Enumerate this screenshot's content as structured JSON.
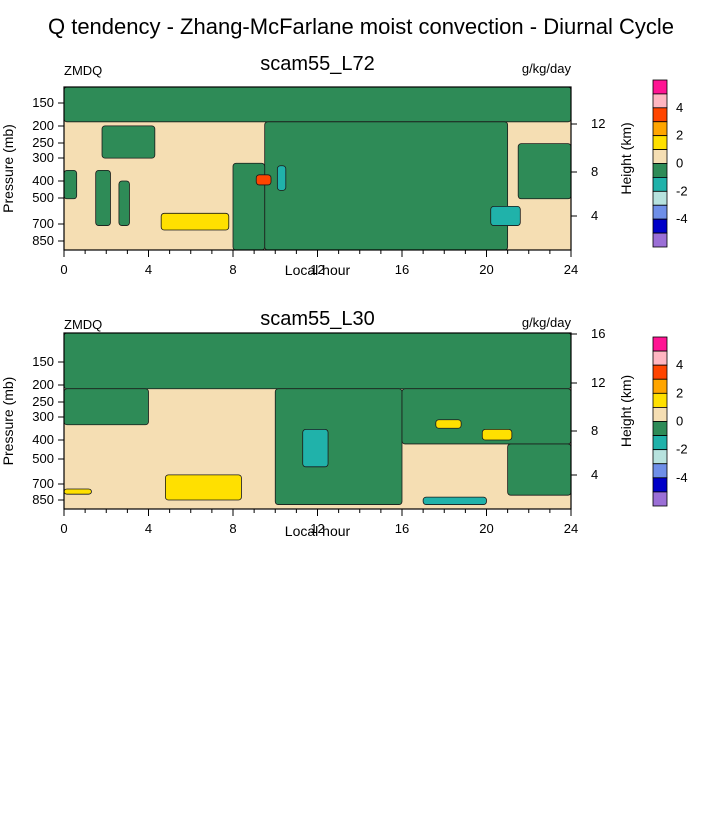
{
  "figure_title": "Q tendency - Zhang-McFarlane moist convection - Diurnal Cycle",
  "colors": {
    "purple": "#9b6fd6",
    "dark_blue": "#0000c8",
    "blue": "#6f8fe8",
    "light_blue": "#add8e6",
    "light_teal": "#b7e2de",
    "teal": "#20b2aa",
    "green": "#2e8b57",
    "beige": "#f5deb3",
    "yellow": "#ffe000",
    "orange": "#ffa500",
    "red_orange": "#ff4500",
    "pink": "#ffb6c1",
    "magenta": "#ff1493"
  },
  "chart_data": [
    {
      "type": "heatmap",
      "panel": "L72",
      "title": "scam55_L72",
      "left_label": "ZMDQ",
      "right_label": "g/kg/day",
      "xlabel": "Local hour",
      "ylabel": "Pressure (mb)",
      "y2label": "Height (km)",
      "xlim": [
        0,
        24
      ],
      "xticks": [
        "0",
        "4",
        "8",
        "12",
        "16",
        "20",
        "24"
      ],
      "yticks": [
        "150",
        "200",
        "250",
        "300",
        "400",
        "500",
        "700",
        "850"
      ],
      "y2ticks": [
        "4",
        "8",
        "12"
      ],
      "colorbar": {
        "labels": [
          "4",
          "2",
          "0",
          "-2",
          "-4"
        ],
        "levels": [
          5,
          4,
          3,
          2,
          1,
          0,
          -1,
          -2,
          -3,
          -4,
          -5
        ],
        "color_keys": [
          "magenta",
          "pink",
          "red_orange",
          "orange",
          "yellow",
          "beige",
          "green",
          "teal",
          "light_teal",
          "blue",
          "dark_blue",
          "purple"
        ]
      },
      "regions": [
        {
          "value": "0 to -1",
          "color": "green",
          "x": [
            0,
            24
          ],
          "p": [
            100,
            190
          ]
        },
        {
          "value": "0 to -1",
          "color": "green",
          "x": [
            9.5,
            21
          ],
          "p": [
            190,
            1000
          ]
        },
        {
          "value": "0 to -1",
          "color": "green",
          "x": [
            1.8,
            4.3
          ],
          "p": [
            200,
            300
          ]
        },
        {
          "value": "0 to -1",
          "color": "green",
          "x": [
            0,
            0.6
          ],
          "p": [
            350,
            500
          ]
        },
        {
          "value": "0 to -1",
          "color": "green",
          "x": [
            1.5,
            2.2
          ],
          "p": [
            350,
            700
          ]
        },
        {
          "value": "0 to -1",
          "color": "green",
          "x": [
            2.6,
            3.1
          ],
          "p": [
            400,
            700
          ]
        },
        {
          "value": "0 to -1",
          "color": "green",
          "x": [
            8,
            9.5
          ],
          "p": [
            320,
            1000
          ]
        },
        {
          "value": "0 to -1",
          "color": "green",
          "x": [
            21.5,
            24
          ],
          "p": [
            250,
            500
          ]
        },
        {
          "value": "-1 to -2",
          "color": "teal",
          "x": [
            10.1,
            10.5
          ],
          "p": [
            330,
            450
          ]
        },
        {
          "value": "-1 to -2",
          "color": "teal",
          "x": [
            20.2,
            21.6
          ],
          "p": [
            550,
            700
          ]
        },
        {
          "value": "1 to 2",
          "color": "yellow",
          "x": [
            4.6,
            7.8
          ],
          "p": [
            600,
            740
          ]
        },
        {
          "value": "> 2",
          "color": "red_orange",
          "x": [
            9.1,
            9.8
          ],
          "p": [
            370,
            420
          ]
        }
      ]
    },
    {
      "type": "heatmap",
      "panel": "L30",
      "title": "scam55_L30",
      "left_label": "ZMDQ",
      "right_label": "g/kg/day",
      "xlabel": "Local hour",
      "ylabel": "Pressure (mb)",
      "y2label": "Height (km)",
      "xlim": [
        0,
        24
      ],
      "xticks": [
        "0",
        "4",
        "8",
        "12",
        "16",
        "20",
        "24"
      ],
      "yticks": [
        "150",
        "200",
        "250",
        "300",
        "400",
        "500",
        "700",
        "850"
      ],
      "y2ticks": [
        "4",
        "8",
        "12",
        "16"
      ],
      "colorbar": {
        "labels": [
          "4",
          "2",
          "0",
          "-2",
          "-4"
        ],
        "levels": [
          5,
          4,
          3,
          2,
          1,
          0,
          -1,
          -2,
          -3,
          -4,
          -5
        ],
        "color_keys": [
          "magenta",
          "pink",
          "red_orange",
          "orange",
          "yellow",
          "beige",
          "green",
          "teal",
          "light_teal",
          "blue",
          "dark_blue",
          "purple"
        ]
      },
      "regions": [
        {
          "value": "0 to -1",
          "color": "green",
          "x": [
            0,
            24
          ],
          "p": [
            100,
            210
          ]
        },
        {
          "value": "0 to -1",
          "color": "green",
          "x": [
            0,
            4
          ],
          "p": [
            210,
            330
          ]
        },
        {
          "value": "0 to -1",
          "color": "green",
          "x": [
            10,
            16
          ],
          "p": [
            210,
            900
          ]
        },
        {
          "value": "0 to -1",
          "color": "green",
          "x": [
            16,
            24
          ],
          "p": [
            210,
            420
          ]
        },
        {
          "value": "0 to -1",
          "color": "green",
          "x": [
            21,
            24
          ],
          "p": [
            420,
            800
          ]
        },
        {
          "value": "-1 to -2",
          "color": "teal",
          "x": [
            11.3,
            12.5
          ],
          "p": [
            350,
            560
          ]
        },
        {
          "value": "-1 to -2",
          "color": "teal",
          "x": [
            17,
            20
          ],
          "p": [
            820,
            900
          ]
        },
        {
          "value": "1 to 2",
          "color": "yellow",
          "x": [
            4.8,
            8.4
          ],
          "p": [
            620,
            850
          ]
        },
        {
          "value": "1 to 2",
          "color": "yellow",
          "x": [
            17.6,
            18.8
          ],
          "p": [
            310,
            345
          ]
        },
        {
          "value": "1 to 2",
          "color": "yellow",
          "x": [
            19.8,
            21.2
          ],
          "p": [
            350,
            400
          ]
        },
        {
          "value": "1 to 2",
          "color": "yellow",
          "x": [
            0,
            1.3
          ],
          "p": [
            740,
            790
          ]
        }
      ]
    }
  ]
}
